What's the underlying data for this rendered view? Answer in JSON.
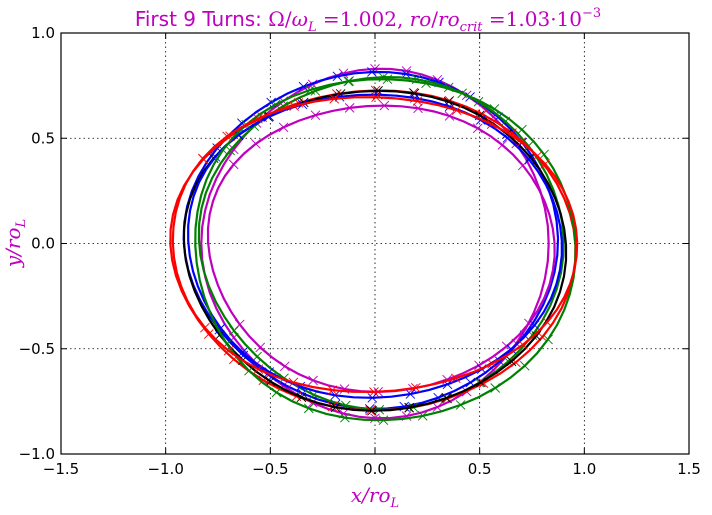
{
  "chart_data": {
    "type": "line",
    "title_parts": {
      "prefix": "First 9 Turns: ",
      "omega": "Ω",
      "slash": "/",
      "omega_l": "ω",
      "sub_l": "L",
      "eq1": " =1.002, ",
      "ro": "ro",
      "slash2": "/",
      "ro_crit": "ro",
      "sub_crit": "crit",
      "eq2": " =1.03",
      "dot": "·",
      "ten": "10",
      "sup_exp": "−3"
    },
    "xlabel_parts": {
      "main": "x/ro",
      "sub": "L"
    },
    "ylabel_parts": {
      "main": "y/ro",
      "sub": "L"
    },
    "xlim": [
      -1.5,
      1.5
    ],
    "ylim": [
      -1.0,
      1.0
    ],
    "xticks": [
      -1.5,
      -1.0,
      -0.5,
      0.0,
      0.5,
      1.0,
      1.5
    ],
    "xtick_labels": [
      "−1.5",
      "−1.0",
      "−0.5",
      "0.0",
      "0.5",
      "1.0",
      "1.5"
    ],
    "yticks": [
      -1.0,
      -0.5,
      0.0,
      0.5,
      1.0
    ],
    "ytick_labels": [
      "−1.0",
      "−0.5",
      "0.0",
      "0.5",
      "1.0"
    ],
    "grid": true,
    "marker": "x",
    "series": [
      {
        "color": "#bf00bf",
        "cx": 0.0,
        "cy": 0.0,
        "rx": 0.815,
        "ry": 0.83,
        "phase": 0.0
      },
      {
        "color": "#0000ff",
        "cx": -0.02,
        "cy": 0.02,
        "rx": 0.88,
        "ry": 0.8,
        "phase": 0.35
      },
      {
        "color": "#008000",
        "cx": 0.03,
        "cy": 0.01,
        "rx": 0.86,
        "ry": 0.79,
        "phase": 0.7
      },
      {
        "color": "#ff0000",
        "cx": -0.01,
        "cy": -0.02,
        "rx": 0.96,
        "ry": 0.76,
        "phase": 1.05
      },
      {
        "color": "#000000",
        "cx": 0.0,
        "cy": -0.02,
        "rx": 0.91,
        "ry": 0.76,
        "phase": 1.4
      },
      {
        "color": "#bf00bf",
        "cx": 0.03,
        "cy": -0.01,
        "rx": 0.83,
        "ry": 0.68,
        "phase": 1.75
      },
      {
        "color": "#0000ff",
        "cx": 0.0,
        "cy": 0.0,
        "rx": 0.9,
        "ry": 0.72,
        "phase": 2.1
      },
      {
        "color": "#008000",
        "cx": 0.05,
        "cy": -0.02,
        "rx": 0.92,
        "ry": 0.81,
        "phase": 2.45
      },
      {
        "color": "#ff0000",
        "cx": 0.0,
        "cy": 0.0,
        "rx": 0.98,
        "ry": 0.7,
        "phase": 2.8
      }
    ]
  }
}
